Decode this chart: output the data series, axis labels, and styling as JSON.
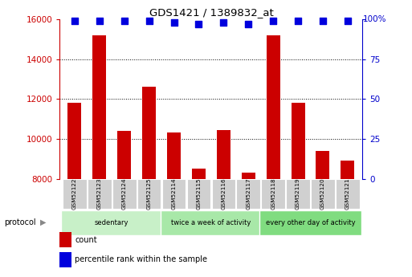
{
  "title": "GDS1421 / 1389832_at",
  "samples": [
    "GSM52122",
    "GSM52123",
    "GSM52124",
    "GSM52125",
    "GSM52114",
    "GSM52115",
    "GSM52116",
    "GSM52117",
    "GSM52118",
    "GSM52119",
    "GSM52120",
    "GSM52121"
  ],
  "counts": [
    11800,
    15200,
    10400,
    12600,
    10300,
    8500,
    10450,
    8300,
    15200,
    11800,
    9400,
    8900
  ],
  "percentile_ranks": [
    99,
    99,
    99,
    99,
    98,
    97,
    98,
    97,
    99,
    99,
    99,
    99
  ],
  "groups": [
    {
      "label": "sedentary",
      "start": 0,
      "end": 4,
      "color": "#c8f0c8"
    },
    {
      "label": "twice a week of activity",
      "start": 4,
      "end": 8,
      "color": "#a8e8a8"
    },
    {
      "label": "every other day of activity",
      "start": 8,
      "end": 12,
      "color": "#80dc80"
    }
  ],
  "ylim_left": [
    8000,
    16000
  ],
  "ylim_right": [
    0,
    100
  ],
  "yticks_left": [
    8000,
    10000,
    12000,
    14000,
    16000
  ],
  "yticks_right": [
    0,
    25,
    50,
    75,
    100
  ],
  "bar_color": "#cc0000",
  "dot_color": "#0000dd",
  "bar_width": 0.55,
  "left_tick_color": "#cc0000",
  "right_tick_color": "#0000cc",
  "grid_color": "#000000",
  "background_color": "#ffffff",
  "protocol_label": "protocol",
  "legend_count_label": "count",
  "legend_percentile_label": "percentile rank within the sample",
  "sample_box_color": "#d0d0d0",
  "fig_width": 5.13,
  "fig_height": 3.45,
  "dpi": 100
}
